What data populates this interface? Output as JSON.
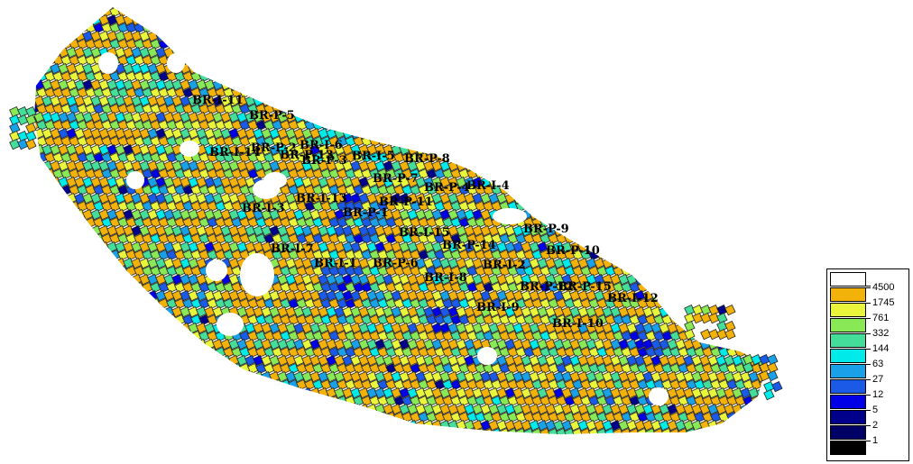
{
  "map": {
    "colors": [
      "#000000",
      "#000066",
      "#00008b",
      "#0000e6",
      "#1a5ae6",
      "#1aa0e6",
      "#00eaea",
      "#44dd99",
      "#88e855",
      "#e8f53a",
      "#f3b20a",
      "#ffffff"
    ],
    "wells": [
      {
        "label": "BR-I-11"
      },
      {
        "label": "BR-P-5"
      },
      {
        "label": "BR-I-6"
      },
      {
        "label": "BR-I-14"
      },
      {
        "label": "BR-P-2"
      },
      {
        "label": "BR-P-13"
      },
      {
        "label": "BR-P-3"
      },
      {
        "label": "BR-I-5"
      },
      {
        "label": "BR-P-8"
      },
      {
        "label": "BR-P-7"
      },
      {
        "label": "BR-P-4"
      },
      {
        "label": "BR-I-4"
      },
      {
        "label": "BR-I-13"
      },
      {
        "label": "BR-P-11"
      },
      {
        "label": "BR-I-3"
      },
      {
        "label": "BR-P-1"
      },
      {
        "label": "BR-P-9"
      },
      {
        "label": "BR-I-15"
      },
      {
        "label": "BR-P-10"
      },
      {
        "label": "BR-P-14"
      },
      {
        "label": "BR-I-7"
      },
      {
        "label": "BR-I-1"
      },
      {
        "label": "BR-P-6"
      },
      {
        "label": "BR-I-2"
      },
      {
        "label": "BR-I-8"
      },
      {
        "label": "BR-P-12"
      },
      {
        "label": "BR-P-15"
      },
      {
        "label": "BR-I-9"
      },
      {
        "label": "BR-I-12"
      },
      {
        "label": "BR-I-10"
      }
    ]
  },
  "legend": {
    "items": [
      {
        "label": "",
        "color": "#ffffff"
      },
      {
        "label": "4500",
        "color": "#f3b20a"
      },
      {
        "label": "1745",
        "color": "#e8f53a"
      },
      {
        "label": "761",
        "color": "#88e855"
      },
      {
        "label": "332",
        "color": "#44dd99"
      },
      {
        "label": "144",
        "color": "#00eaea"
      },
      {
        "label": "63",
        "color": "#1aa0e6"
      },
      {
        "label": "27",
        "color": "#1a5ae6"
      },
      {
        "label": "12",
        "color": "#0000e6"
      },
      {
        "label": "5",
        "color": "#00008b"
      },
      {
        "label": "2",
        "color": "#000066"
      },
      {
        "label": "1",
        "color": "#000000"
      }
    ]
  }
}
